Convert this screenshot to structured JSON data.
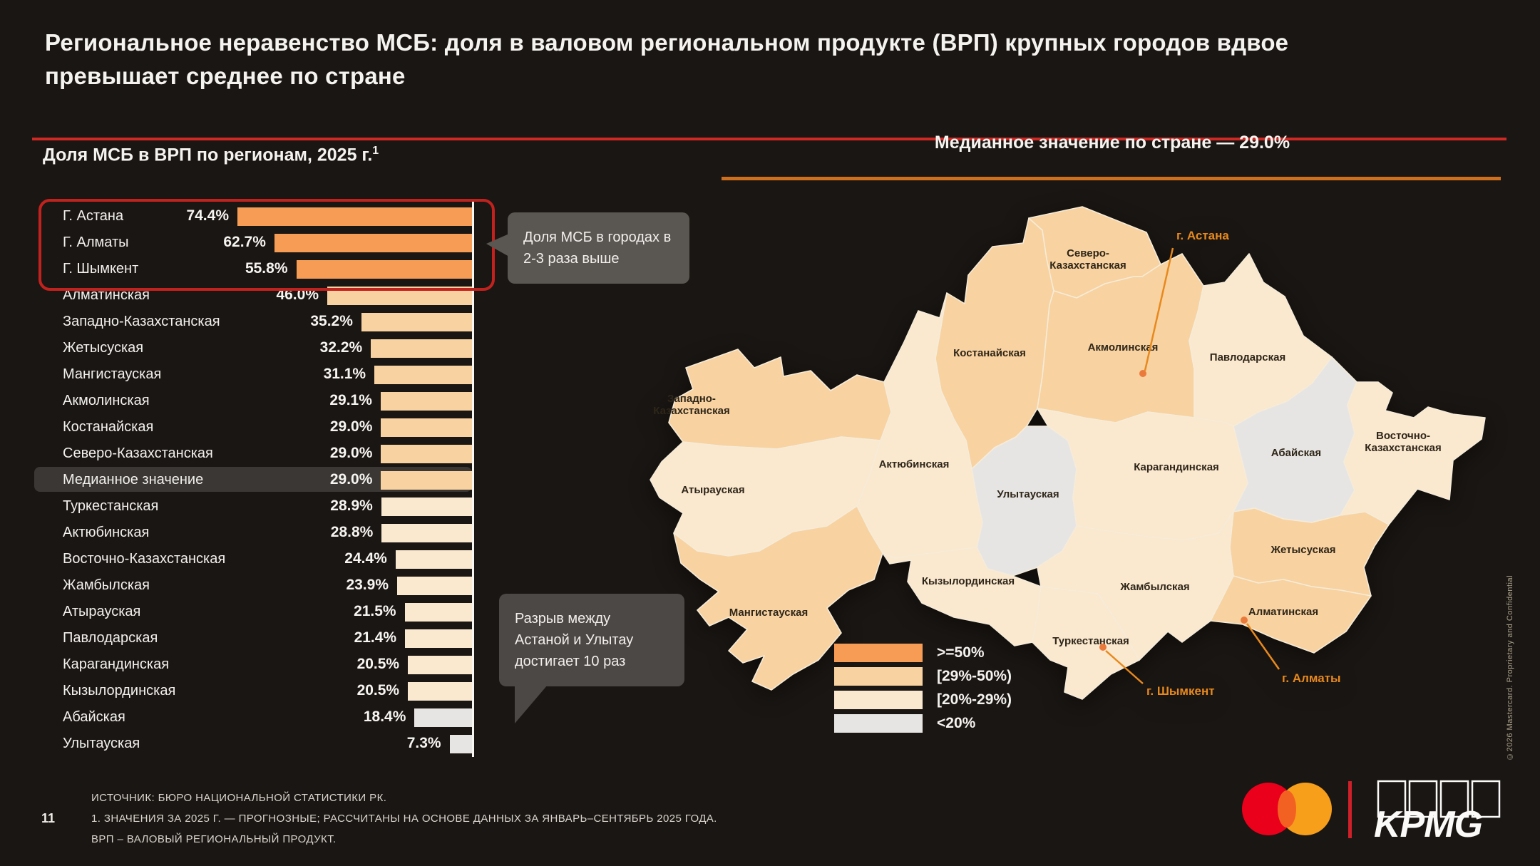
{
  "slide": {
    "title": "Региональное неравенство МСБ: доля в валовом региональном продукте (ВРП) крупных городов вдвое превышает среднее по стране",
    "page_number": "11"
  },
  "chart": {
    "heading": "Доля МСБ в ВРП по регионам, 2025 г.",
    "heading_superscript": "1",
    "callout_top": "Доля МСБ в городах в 2-3 раза выше",
    "callout_bottom": "Разрыв между Астаной и Улытау достигает 10 раз"
  },
  "chart_data": {
    "type": "bar",
    "orientation": "horizontal-right-anchored",
    "title": "Доля МСБ в ВРП по регионам, 2025 г.",
    "unit": "%",
    "categories": [
      "Г. Астана",
      "Г. Алматы",
      "Г. Шымкент",
      "Алматинская",
      "Западно-Казахстанская",
      "Жетысуская",
      "Мангистауская",
      "Акмолинская",
      "Костанайская",
      "Северо-Казахстанская",
      "Медианное значение",
      "Туркестанская",
      "Актюбинская",
      "Восточно-Казахстанская",
      "Жамбылская",
      "Атырауская",
      "Павлодарская",
      "Карагандинская",
      "Кызылординская",
      "Абайская",
      "Улытауская"
    ],
    "values": [
      74.4,
      62.7,
      55.8,
      46.0,
      35.2,
      32.2,
      31.1,
      29.1,
      29.0,
      29.0,
      29.0,
      28.9,
      28.8,
      24.4,
      23.9,
      21.5,
      21.4,
      20.5,
      20.5,
      18.4,
      7.3
    ],
    "buckets": [
      "gte50",
      "gte50",
      "gte50",
      "b29_50",
      "b29_50",
      "b29_50",
      "b29_50",
      "b29_50",
      "b29_50",
      "b29_50",
      "b29_50",
      "b20_29",
      "b20_29",
      "b20_29",
      "b20_29",
      "b20_29",
      "b20_29",
      "b20_29",
      "b20_29",
      "lt20",
      "lt20"
    ],
    "median_row_index": 10,
    "median_value": 29.0,
    "xlim": [
      0,
      74.4
    ],
    "highlighted_top_rows": 3
  },
  "map": {
    "heading": "Медианное значение по стране — 29.0%",
    "bucket_colors": {
      "gte50": "#F79C54",
      "b29_50": "#F8D2A0",
      "b20_29": "#FAE8CF",
      "lt20": "#E7E5E3"
    },
    "legend": [
      {
        "label": ">=50%",
        "bucket": "gte50"
      },
      {
        "label": "[29%-50%)",
        "bucket": "b29_50"
      },
      {
        "label": "[20%-29%)",
        "bucket": "b20_29"
      },
      {
        "label": "<20%",
        "bucket": "lt20"
      }
    ],
    "regions": [
      {
        "key": "wko",
        "name": "Западно-\nКазахстанская",
        "bucket": "b29_50"
      },
      {
        "key": "atyrau",
        "name": "Атырауская",
        "bucket": "b20_29"
      },
      {
        "key": "aktobe",
        "name": "Актюбинская",
        "bucket": "b20_29"
      },
      {
        "key": "mangystau",
        "name": "Мангистауская",
        "bucket": "b29_50"
      },
      {
        "key": "kostanay",
        "name": "Костанайская",
        "bucket": "b29_50"
      },
      {
        "key": "sko",
        "name": "Северо-\nКазахстанская",
        "bucket": "b29_50"
      },
      {
        "key": "akmola",
        "name": "Акмолинская",
        "bucket": "b29_50"
      },
      {
        "key": "pavlodar",
        "name": "Павлодарская",
        "bucket": "b20_29"
      },
      {
        "key": "ulytau",
        "name": "Улытауская",
        "bucket": "lt20"
      },
      {
        "key": "karaganda",
        "name": "Карагандинская",
        "bucket": "b20_29"
      },
      {
        "key": "abay",
        "name": "Абайская",
        "bucket": "lt20"
      },
      {
        "key": "vko",
        "name": "Восточно-\nКазахстанская",
        "bucket": "b20_29"
      },
      {
        "key": "kyzylorda",
        "name": "Кызылординская",
        "bucket": "b20_29"
      },
      {
        "key": "zhambyl",
        "name": "Жамбылская",
        "bucket": "b20_29"
      },
      {
        "key": "turkestan",
        "name": "Туркестанская",
        "bucket": "b20_29"
      },
      {
        "key": "zhetysu",
        "name": "Жетысуская",
        "bucket": "b29_50"
      },
      {
        "key": "almaty",
        "name": "Алматинская",
        "bucket": "b29_50"
      }
    ],
    "cities": [
      {
        "key": "astana",
        "name": "г. Астана"
      },
      {
        "key": "shymkent",
        "name": "г. Шымкент"
      },
      {
        "key": "almaty_city",
        "name": "г. Алматы"
      }
    ]
  },
  "footer": {
    "lines": [
      "ИСТОЧНИК: БЮРО НАЦИОНАЛЬНОЙ СТАТИСТИКИ РК.",
      "1. ЗНАЧЕНИЯ ЗА 2025 Г. — ПРОГНОЗНЫЕ; РАССЧИТАНЫ НА ОСНОВЕ ДАННЫХ ЗА ЯНВАРЬ–СЕНТЯБРЬ 2025 ГОДА.",
      "ВРП – ВАЛОВЫЙ РЕГИОНАЛЬНЫЙ ПРОДУКТ."
    ],
    "copyright_vertical": "©2026 Mastercard. Proprietary and Confidential",
    "kpmg_logo_text": "KPMG"
  }
}
